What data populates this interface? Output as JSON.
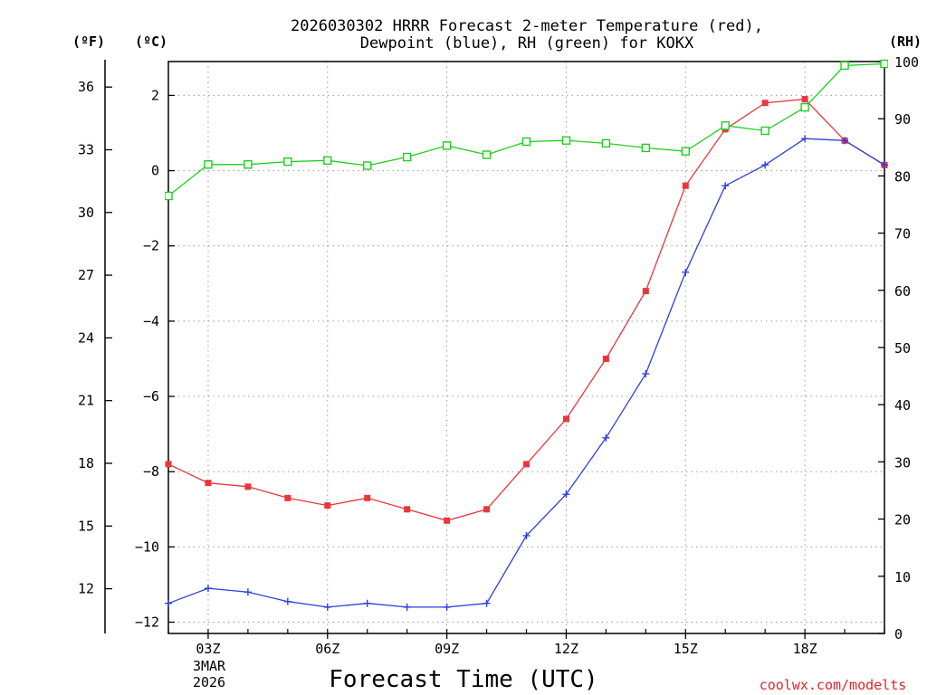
{
  "chart_data": {
    "type": "line",
    "title": "2026030302 HRRR Forecast 2-meter Temperature (red),",
    "title_line2": "Dewpoint (blue), RH (green) for KOKX",
    "xlabel": "Forecast Time (UTC)",
    "date_label": [
      "3MAR",
      "2026"
    ],
    "credit": "coolwx.com/modelts",
    "axis_units": {
      "fahrenheit": "(ºF)",
      "celsius": "(ºC)",
      "rh": "(RH)"
    },
    "x_hours": [
      2,
      3,
      4,
      5,
      6,
      7,
      8,
      9,
      10,
      11,
      12,
      13,
      14,
      15,
      16,
      17,
      18,
      19,
      20
    ],
    "x_ticks": [
      {
        "hour": 3,
        "label": "03Z"
      },
      {
        "hour": 6,
        "label": "06Z"
      },
      {
        "hour": 9,
        "label": "09Z"
      },
      {
        "hour": 12,
        "label": "12Z"
      },
      {
        "hour": 15,
        "label": "15Z"
      },
      {
        "hour": 18,
        "label": "18Z"
      }
    ],
    "xlim": [
      2,
      20
    ],
    "celsius_axis": {
      "ylim": [
        -12.3,
        2.9
      ],
      "ticks": [
        2,
        0,
        -2,
        -4,
        -6,
        -8,
        -10,
        -12
      ],
      "labels": [
        "2",
        "0",
        "−2",
        "−4",
        "−6",
        "−8",
        "−10",
        "−12"
      ]
    },
    "fahrenheit_axis": {
      "ticks": [
        36,
        33,
        30,
        27,
        24,
        21,
        18,
        15,
        12
      ],
      "labels": [
        "36",
        "33",
        "30",
        "27",
        "24",
        "21",
        "18",
        "15",
        "12"
      ]
    },
    "rh_axis": {
      "ylim": [
        0,
        100
      ],
      "ticks": [
        100,
        90,
        80,
        70,
        60,
        50,
        40,
        30,
        20,
        10,
        0
      ],
      "labels": [
        "100",
        "90",
        "80",
        "70",
        "60",
        "50",
        "40",
        "30",
        "20",
        "10",
        "0"
      ]
    },
    "series": [
      {
        "name": "Temperature",
        "axis": "celsius",
        "color": "#e8363c",
        "marker": "filled-square",
        "values": [
          -7.8,
          -8.3,
          -8.4,
          -8.7,
          -8.9,
          -8.7,
          -9.0,
          -9.3,
          -9.0,
          -7.8,
          -6.6,
          -5.0,
          -3.2,
          -0.4,
          1.1,
          1.8,
          1.9,
          0.8,
          0.15
        ]
      },
      {
        "name": "Dewpoint",
        "axis": "celsius",
        "color": "#2c3fe0",
        "marker": "plus",
        "values": [
          -11.5,
          -11.1,
          -11.2,
          -11.45,
          -11.6,
          -11.5,
          -11.6,
          -11.6,
          -11.5,
          -9.7,
          -8.6,
          -7.1,
          -5.4,
          -2.7,
          -0.4,
          0.15,
          0.85,
          0.8,
          0.15
        ]
      },
      {
        "name": "RH",
        "axis": "rh",
        "color": "#1ecf1e",
        "marker": "open-square",
        "values": [
          76.5,
          82,
          82,
          82.5,
          82.7,
          81.8,
          83.3,
          85.3,
          83.7,
          86,
          86.2,
          85.7,
          84.9,
          84.3,
          88.8,
          87.9,
          92,
          99.3,
          99.6
        ]
      }
    ]
  }
}
